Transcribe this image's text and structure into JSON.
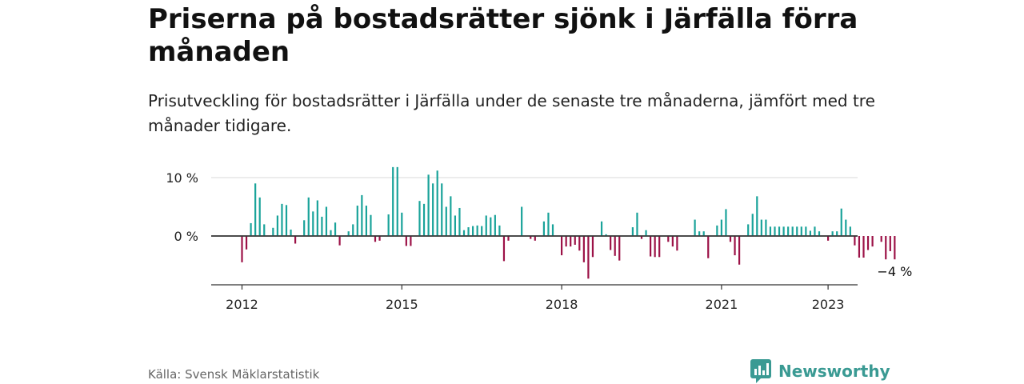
{
  "header": {
    "title": "Priserna på bostadsrätter sjönk i Järfälla förra månaden",
    "subtitle": "Prisutveckling för bostadsrätter i Järfälla under de senaste tre månaderna, jämfört med tre månader tidigare."
  },
  "footer": {
    "source": "Källa: Svensk Mäklarstatistik",
    "brand": "Newsworthy"
  },
  "colors": {
    "positive": "#1aa39a",
    "negative": "#9c1247",
    "grid": "#d9d9d9",
    "axis": "#333333"
  },
  "chart_data": {
    "type": "bar",
    "title": "",
    "xlabel": "",
    "ylabel": "",
    "ylim": [
      -8,
      12
    ],
    "y_ticks": [
      {
        "value": 0,
        "label": "0 %"
      },
      {
        "value": 10,
        "label": "10 %"
      }
    ],
    "x_ticks": [
      "2012",
      "2015",
      "2018",
      "2021",
      "2023"
    ],
    "x_start": "2012-01",
    "end_label": "−4 %",
    "series": [
      {
        "values": [
          -4.5,
          -2.3,
          2.2,
          9.0,
          6.6,
          2.0,
          0.0,
          1.4,
          3.5,
          5.5,
          5.3,
          1.1,
          -1.3,
          0.0,
          2.7,
          6.6,
          4.2,
          6.1,
          3.3,
          5.0,
          1.0,
          2.3,
          -1.6,
          0.0,
          0.8,
          2.0,
          5.2,
          7.0,
          5.2,
          3.6,
          -1.0,
          -0.8,
          0.0,
          3.7,
          11.8,
          11.8,
          4.0,
          -1.7,
          -1.7,
          0.0,
          6.0,
          5.5,
          10.5,
          9.0,
          11.2,
          9.0,
          5.0,
          6.8,
          3.5,
          4.8,
          1.0,
          1.5,
          1.7,
          1.8,
          1.7,
          3.5,
          3.2,
          3.6,
          1.8,
          -4.3,
          -0.8,
          0.0,
          0.0,
          5.0,
          0.0,
          -0.5,
          -0.8,
          0.0,
          2.5,
          4.0,
          2.0,
          0.0,
          -3.3,
          -1.8,
          -1.8,
          -1.5,
          -2.5,
          -4.5,
          -7.3,
          -3.6,
          0.0,
          2.5,
          0.3,
          -2.4,
          -3.4,
          -4.2,
          0.0,
          0.0,
          1.5,
          4.0,
          -0.5,
          1.0,
          -3.5,
          -3.6,
          -3.6,
          0.0,
          -1.0,
          -1.8,
          -2.5,
          0.0,
          0.0,
          0.0,
          2.8,
          0.8,
          0.8,
          -3.8,
          0.0,
          1.8,
          2.8,
          4.6,
          -1.0,
          -3.3,
          -4.9,
          0.0,
          2.0,
          3.8,
          6.8,
          2.8,
          2.8,
          1.6,
          1.6,
          1.6,
          1.6,
          1.6,
          1.6,
          1.6,
          1.6,
          1.6,
          0.9,
          1.6,
          0.8,
          0.0,
          -0.8,
          0.8,
          0.8,
          4.7,
          2.8,
          1.6,
          -1.6,
          -3.7,
          -3.7,
          -2.4,
          -1.8,
          0.0,
          -1.0,
          -4.0,
          -2.6,
          -4.0
        ]
      }
    ]
  }
}
